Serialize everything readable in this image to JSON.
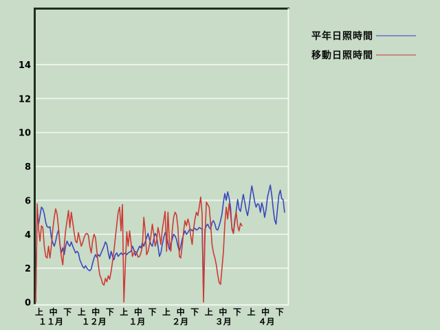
{
  "chart": {
    "legend": [
      {
        "label": "平年日照時間",
        "sample_color": "#7e89cb"
      },
      {
        "label": "移動日照時間",
        "sample_color": "#c9837d"
      }
    ]
  },
  "chart_data": {
    "type": "line",
    "title": "",
    "xlabel": "",
    "ylabel": "",
    "ylim": [
      0,
      17.4
    ],
    "yticks": [
      0,
      2,
      4,
      6,
      8,
      10,
      12,
      14
    ],
    "grid": "horizontal white gridlines at even values, no vertical gridlines",
    "legend_position": "outside top-right",
    "x_axis": {
      "months": [
        "１１月",
        "１２月",
        "１月",
        "２月",
        "３月",
        "４月"
      ],
      "periods": [
        "上",
        "中",
        "下"
      ],
      "note": "daily values from November through April; each month divided into 上/中/下 ten-day periods"
    },
    "series": [
      {
        "id": "normal",
        "name": "平年日照時間",
        "color": "#3b46b9",
        "values": [
          0,
          5.5,
          4.6,
          5.1,
          5.6,
          5.5,
          5.2,
          4.7,
          4.45,
          4.4,
          4.45,
          3.8,
          3.5,
          3.3,
          3.6,
          4.0,
          4.25,
          3.4,
          2.9,
          3.2,
          2.8,
          3.3,
          3.6,
          3.4,
          3.3,
          3.55,
          3.3,
          3.1,
          2.9,
          3.0,
          2.9,
          2.5,
          2.3,
          2.1,
          2.0,
          2.15,
          2.0,
          1.9,
          1.85,
          1.95,
          2.3,
          2.6,
          2.8,
          2.65,
          2.8,
          2.7,
          2.9,
          3.1,
          3.3,
          3.55,
          3.4,
          2.9,
          2.55,
          3.0,
          2.7,
          2.5,
          2.8,
          2.9,
          2.7,
          2.8,
          2.9,
          2.8,
          2.85,
          2.9,
          2.8,
          2.9,
          2.95,
          3.0,
          3.3,
          3.1,
          2.75,
          2.9,
          3.1,
          3.3,
          3.2,
          3.5,
          3.3,
          3.55,
          3.8,
          4.05,
          3.7,
          3.4,
          3.3,
          3.7,
          4.05,
          3.9,
          3.3,
          2.7,
          2.9,
          3.4,
          3.8,
          4.1,
          3.9,
          3.5,
          3.1,
          3.4,
          3.7,
          4.0,
          3.9,
          3.7,
          3.3,
          3.0,
          3.3,
          3.7,
          4.0,
          4.2,
          4.0,
          4.1,
          4.25,
          4.3,
          4.2,
          4.3,
          4.35,
          4.25,
          4.3,
          4.4,
          4.35,
          4.3,
          0.3,
          4.3,
          4.5,
          4.6,
          4.4,
          4.3,
          4.7,
          4.8,
          4.6,
          4.3,
          4.25,
          4.5,
          4.8,
          5.2,
          5.9,
          6.4,
          6.0,
          6.5,
          6.15,
          5.6,
          4.3,
          4.05,
          4.7,
          5.4,
          6.05,
          5.5,
          5.35,
          5.9,
          6.35,
          5.9,
          5.4,
          5.1,
          5.6,
          6.3,
          6.85,
          6.4,
          5.9,
          5.6,
          5.8,
          5.75,
          5.3,
          5.85,
          5.55,
          5.0,
          5.45,
          6.2,
          6.55,
          6.9,
          6.3,
          5.5,
          4.85,
          4.6,
          5.5,
          6.3,
          6.6,
          6.1,
          6.05,
          5.3
        ]
      },
      {
        "id": "moving",
        "name": "移動日照時間",
        "color": "#cd3a33",
        "values": [
          0,
          5.8,
          4.3,
          3.6,
          4.5,
          4.4,
          3.3,
          2.7,
          2.6,
          3.3,
          2.6,
          3.3,
          4.3,
          5.0,
          5.5,
          5.2,
          4.4,
          3.4,
          2.7,
          2.2,
          3.3,
          4.2,
          4.8,
          5.4,
          4.4,
          5.3,
          4.7,
          4.1,
          3.6,
          3.5,
          4.1,
          3.7,
          3.3,
          3.5,
          3.8,
          4.0,
          4.05,
          3.95,
          3.3,
          2.9,
          3.6,
          4.0,
          3.8,
          3.0,
          2.2,
          1.6,
          1.4,
          1.1,
          1.0,
          1.4,
          1.2,
          1.55,
          1.35,
          1.8,
          2.4,
          3.0,
          3.8,
          4.6,
          5.3,
          5.6,
          4.2,
          5.75,
          0.0,
          2.2,
          4.15,
          3.3,
          4.2,
          3.5,
          2.7,
          2.9,
          3.0,
          2.9,
          2.65,
          2.7,
          2.9,
          3.3,
          5.0,
          4.2,
          2.8,
          3.0,
          3.4,
          3.9,
          4.6,
          4.0,
          3.3,
          3.6,
          4.4,
          4.0,
          3.4,
          4.3,
          4.8,
          5.35,
          3.0,
          5.3,
          3.6,
          3.0,
          4.2,
          5.0,
          5.3,
          5.15,
          4.4,
          2.7,
          2.6,
          3.3,
          4.2,
          4.8,
          4.5,
          4.9,
          4.6,
          3.9,
          3.4,
          4.3,
          4.9,
          5.3,
          5.1,
          5.6,
          6.2,
          5.2,
          0.0,
          3.8,
          5.9,
          5.75,
          5.6,
          4.6,
          3.4,
          2.9,
          2.6,
          2.2,
          1.6,
          1.15,
          1.05,
          2.0,
          3.0,
          4.6,
          5.6,
          4.9,
          5.8,
          5.2,
          4.4,
          4.05,
          4.9,
          5.3,
          4.5,
          4.2,
          4.65,
          4.5
        ]
      }
    ]
  },
  "colors": {
    "background": "#c8dcc8",
    "gridline": "#ebf3eb",
    "border_dark": "#1e2e1e",
    "border_light": "#f2f7f2",
    "text": "#000000"
  }
}
